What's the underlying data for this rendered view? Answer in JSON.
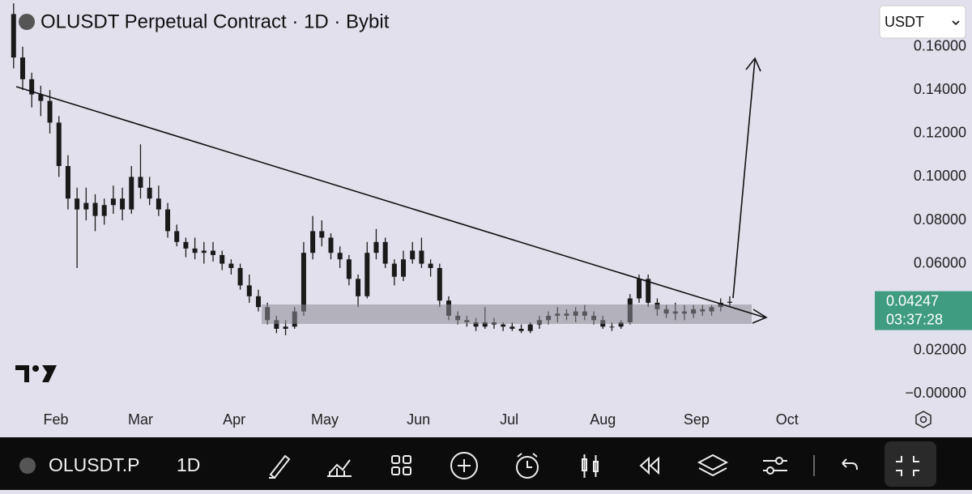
{
  "chart_data": {
    "type": "candlestick",
    "title": "OLUSDT Perpetual Contract · 1D · Bybit",
    "currency": "USDT",
    "symbol": "OLUSDT.P",
    "interval": "1D",
    "last_price": 0.04247,
    "last_price_label": "0.04247",
    "countdown": "03:37:28",
    "color": "#1a1a1a",
    "up_color": "#1a1a1a",
    "down_color": "#1a1a1a",
    "last_price_color": "#3f9c80",
    "xlim": [
      13.5,
      303
    ],
    "xticks": [
      {
        "value": 32,
        "label": "Feb"
      },
      {
        "value": 60,
        "label": "Mar"
      },
      {
        "value": 91,
        "label": "Apr"
      },
      {
        "value": 121,
        "label": "May"
      },
      {
        "value": 152,
        "label": "Jun"
      },
      {
        "value": 182,
        "label": "Jul"
      },
      {
        "value": 213,
        "label": "Aug"
      },
      {
        "value": 244,
        "label": "Sep"
      },
      {
        "value": 274,
        "label": "Oct"
      }
    ],
    "ylim": [
      -0.02,
      0.1815
    ],
    "yticks": [
      {
        "value": 0,
        "label": "−0.00000"
      },
      {
        "value": 0.02,
        "label": "0.02000"
      },
      {
        "value": 0.06,
        "label": "0.06000"
      },
      {
        "value": 0.08,
        "label": "0.08000"
      },
      {
        "value": 0.1,
        "label": "0.10000"
      },
      {
        "value": 0.12,
        "label": "0.12000"
      },
      {
        "value": 0.14,
        "label": "0.14000"
      },
      {
        "value": 0.16,
        "label": "0.16000"
      }
    ],
    "x": [
      18,
      21,
      24,
      27,
      30,
      33,
      36,
      39,
      42,
      45,
      48,
      51,
      54,
      57,
      60,
      63,
      66,
      69,
      72,
      75,
      78,
      81,
      84,
      87,
      90,
      93,
      96,
      99,
      102,
      105,
      108,
      111,
      114,
      117,
      120,
      123,
      126,
      129,
      132,
      135,
      138,
      141,
      144,
      147,
      150,
      153,
      156,
      159,
      162,
      165,
      168,
      171,
      174,
      177,
      180,
      183,
      186,
      189,
      192,
      195,
      198,
      201,
      204,
      207,
      210,
      213,
      216,
      219,
      222,
      225,
      228,
      231,
      234,
      237,
      240,
      243,
      246,
      249,
      252,
      255
    ],
    "ohlc": [
      [
        0.175,
        0.18,
        0.15,
        0.155
      ],
      [
        0.155,
        0.16,
        0.14,
        0.145
      ],
      [
        0.145,
        0.148,
        0.132,
        0.138
      ],
      [
        0.138,
        0.142,
        0.128,
        0.135
      ],
      [
        0.135,
        0.14,
        0.12,
        0.125
      ],
      [
        0.125,
        0.128,
        0.1,
        0.105
      ],
      [
        0.105,
        0.11,
        0.085,
        0.09
      ],
      [
        0.09,
        0.095,
        0.058,
        0.085
      ],
      [
        0.085,
        0.095,
        0.08,
        0.088
      ],
      [
        0.088,
        0.092,
        0.075,
        0.082
      ],
      [
        0.082,
        0.09,
        0.078,
        0.087
      ],
      [
        0.087,
        0.096,
        0.083,
        0.09
      ],
      [
        0.09,
        0.095,
        0.08,
        0.085
      ],
      [
        0.085,
        0.105,
        0.083,
        0.1
      ],
      [
        0.1,
        0.115,
        0.09,
        0.095
      ],
      [
        0.095,
        0.1,
        0.087,
        0.09
      ],
      [
        0.09,
        0.096,
        0.082,
        0.085
      ],
      [
        0.085,
        0.088,
        0.072,
        0.075
      ],
      [
        0.075,
        0.078,
        0.068,
        0.07
      ],
      [
        0.07,
        0.072,
        0.063,
        0.067
      ],
      [
        0.067,
        0.072,
        0.062,
        0.065
      ],
      [
        0.065,
        0.07,
        0.06,
        0.066
      ],
      [
        0.066,
        0.07,
        0.061,
        0.064
      ],
      [
        0.064,
        0.066,
        0.057,
        0.06
      ],
      [
        0.06,
        0.062,
        0.055,
        0.058
      ],
      [
        0.058,
        0.06,
        0.048,
        0.05
      ],
      [
        0.05,
        0.055,
        0.042,
        0.045
      ],
      [
        0.045,
        0.048,
        0.038,
        0.04
      ],
      [
        0.04,
        0.042,
        0.032,
        0.034
      ],
      [
        0.034,
        0.036,
        0.028,
        0.03
      ],
      [
        0.03,
        0.034,
        0.027,
        0.031
      ],
      [
        0.031,
        0.04,
        0.03,
        0.038
      ],
      [
        0.038,
        0.07,
        0.036,
        0.065
      ],
      [
        0.065,
        0.082,
        0.062,
        0.075
      ],
      [
        0.075,
        0.08,
        0.068,
        0.072
      ],
      [
        0.072,
        0.074,
        0.062,
        0.065
      ],
      [
        0.065,
        0.068,
        0.058,
        0.062
      ],
      [
        0.062,
        0.064,
        0.05,
        0.053
      ],
      [
        0.053,
        0.055,
        0.04,
        0.045
      ],
      [
        0.045,
        0.07,
        0.044,
        0.065
      ],
      [
        0.065,
        0.076,
        0.062,
        0.07
      ],
      [
        0.07,
        0.072,
        0.058,
        0.06
      ],
      [
        0.06,
        0.062,
        0.05,
        0.054
      ],
      [
        0.054,
        0.066,
        0.052,
        0.062
      ],
      [
        0.062,
        0.07,
        0.06,
        0.066
      ],
      [
        0.066,
        0.072,
        0.058,
        0.06
      ],
      [
        0.06,
        0.062,
        0.054,
        0.058
      ],
      [
        0.058,
        0.06,
        0.04,
        0.043
      ],
      [
        0.043,
        0.045,
        0.034,
        0.036
      ],
      [
        0.036,
        0.038,
        0.032,
        0.034
      ],
      [
        0.034,
        0.036,
        0.031,
        0.033
      ],
      [
        0.033,
        0.035,
        0.029,
        0.031
      ],
      [
        0.031,
        0.04,
        0.03,
        0.033
      ],
      [
        0.033,
        0.035,
        0.03,
        0.032
      ],
      [
        0.032,
        0.033,
        0.029,
        0.031
      ],
      [
        0.031,
        0.033,
        0.029,
        0.03
      ],
      [
        0.03,
        0.032,
        0.028,
        0.029
      ],
      [
        0.029,
        0.033,
        0.028,
        0.032
      ],
      [
        0.032,
        0.036,
        0.03,
        0.034
      ],
      [
        0.034,
        0.038,
        0.032,
        0.036
      ],
      [
        0.036,
        0.04,
        0.033,
        0.037
      ],
      [
        0.037,
        0.039,
        0.034,
        0.036
      ],
      [
        0.036,
        0.04,
        0.033,
        0.038
      ],
      [
        0.038,
        0.041,
        0.034,
        0.036
      ],
      [
        0.036,
        0.038,
        0.032,
        0.034
      ],
      [
        0.034,
        0.036,
        0.03,
        0.031
      ],
      [
        0.031,
        0.033,
        0.029,
        0.031
      ],
      [
        0.031,
        0.034,
        0.03,
        0.033
      ],
      [
        0.033,
        0.046,
        0.032,
        0.044
      ],
      [
        0.044,
        0.055,
        0.042,
        0.053
      ],
      [
        0.053,
        0.055,
        0.04,
        0.042
      ],
      [
        0.042,
        0.044,
        0.036,
        0.039
      ],
      [
        0.039,
        0.041,
        0.035,
        0.037
      ],
      [
        0.037,
        0.042,
        0.034,
        0.038
      ],
      [
        0.038,
        0.041,
        0.034,
        0.037
      ],
      [
        0.037,
        0.041,
        0.035,
        0.039
      ],
      [
        0.039,
        0.041,
        0.036,
        0.038
      ],
      [
        0.038,
        0.041,
        0.036,
        0.04
      ],
      [
        0.04,
        0.044,
        0.038,
        0.042
      ],
      [
        0.042,
        0.045,
        0.04,
        0.04247
      ]
    ]
  }
}
